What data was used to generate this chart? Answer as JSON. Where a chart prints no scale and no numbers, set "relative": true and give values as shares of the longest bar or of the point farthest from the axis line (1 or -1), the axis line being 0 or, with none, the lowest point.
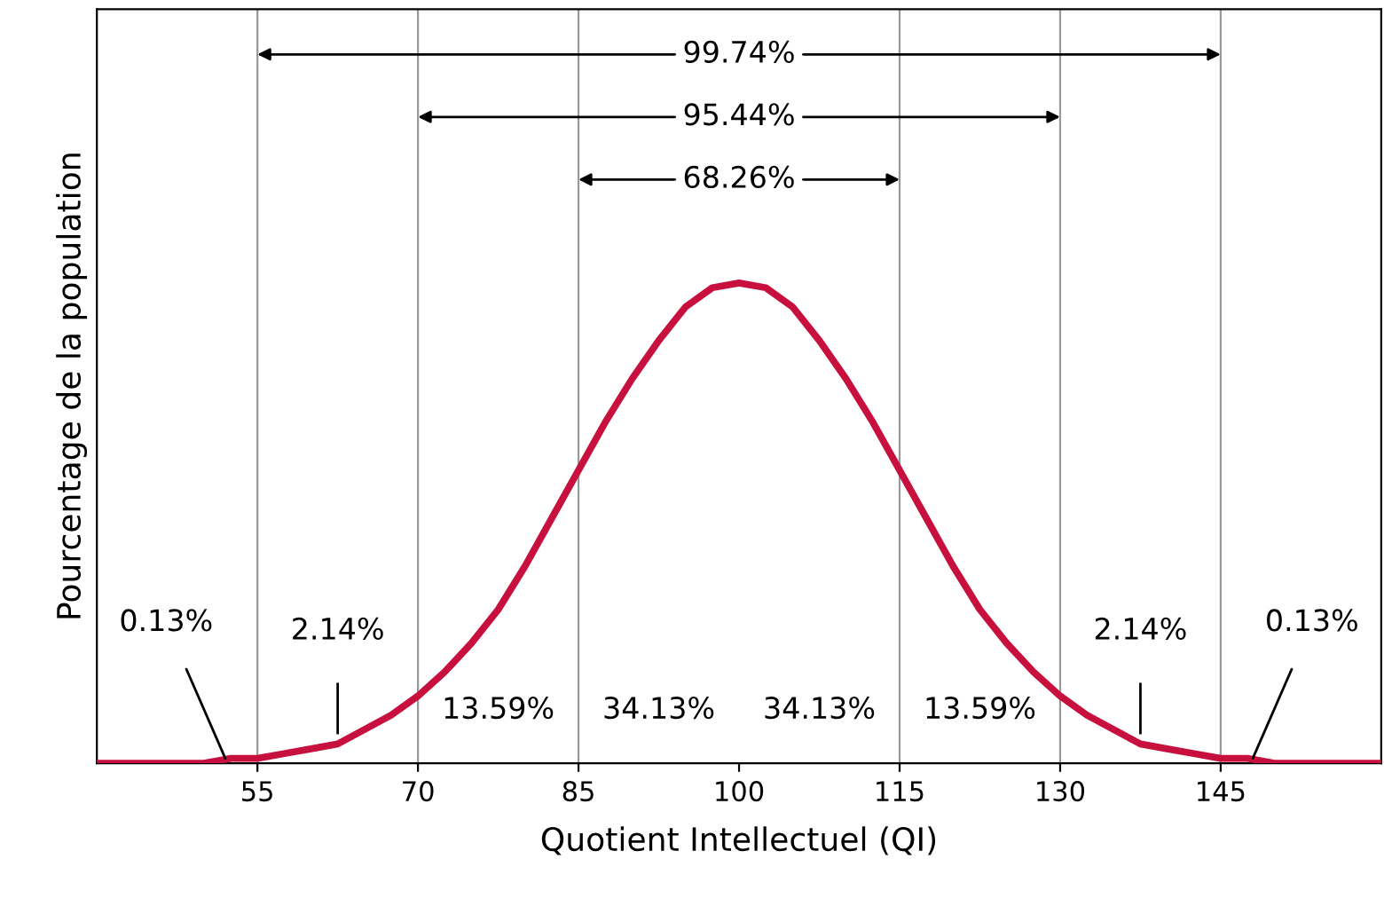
{
  "chart_data": {
    "type": "line",
    "relative": true,
    "xlabel": "Quotient Intellectuel (QI)",
    "ylabel": "Pourcentage de la population",
    "x": [
      40,
      42.5,
      45,
      47.5,
      50,
      52.5,
      55,
      57.5,
      60,
      62.5,
      65,
      67.5,
      70,
      72.5,
      75,
      77.5,
      80,
      82.5,
      85,
      87.5,
      90,
      92.5,
      95,
      97.5,
      100,
      102.5,
      105,
      107.5,
      110,
      112.5,
      115,
      117.5,
      120,
      122.5,
      125,
      127.5,
      130,
      132.5,
      135,
      137.5,
      140,
      142.5,
      145,
      147.5,
      150,
      152.5,
      155,
      157.5,
      160
    ],
    "series": [
      {
        "color": "#c8103e",
        "values": [
          0.0,
          0.0,
          0.0,
          0.0,
          0.0,
          0.01,
          0.01,
          0.02,
          0.03,
          0.04,
          0.07,
          0.1,
          0.14,
          0.19,
          0.25,
          0.32,
          0.41,
          0.51,
          0.61,
          0.71,
          0.8,
          0.88,
          0.95,
          0.99,
          1.0,
          0.99,
          0.95,
          0.88,
          0.8,
          0.71,
          0.61,
          0.51,
          0.41,
          0.32,
          0.25,
          0.19,
          0.14,
          0.1,
          0.07,
          0.04,
          0.03,
          0.02,
          0.01,
          0.01,
          0.0,
          0.0,
          0.0,
          0.0,
          0.0
        ]
      }
    ],
    "xlim": [
      40,
      160
    ],
    "xticks": [
      55,
      70,
      85,
      100,
      115,
      130,
      145
    ],
    "tick_labels": "x",
    "grid": false,
    "marker": "none",
    "line_style": "solid",
    "ref_lines": [
      {
        "axis": "x",
        "value": 55,
        "color": "#999999"
      },
      {
        "axis": "x",
        "value": 70,
        "color": "#999999"
      },
      {
        "axis": "x",
        "value": 85,
        "color": "#999999"
      },
      {
        "axis": "x",
        "value": 115,
        "color": "#999999"
      },
      {
        "axis": "x",
        "value": 130,
        "color": "#999999"
      },
      {
        "axis": "x",
        "value": 145,
        "color": "#999999"
      }
    ],
    "annotations": [
      "99.74%",
      "95.44%",
      "68.26%",
      {
        "text": "0.13%",
        "x": 52,
        "y": 0.01
      },
      "2.14%",
      "13.59%",
      "34.13%",
      "34.13%",
      "13.59%",
      "2.14%",
      {
        "text": "0.13%",
        "x": 148,
        "y": 0.01
      }
    ]
  }
}
